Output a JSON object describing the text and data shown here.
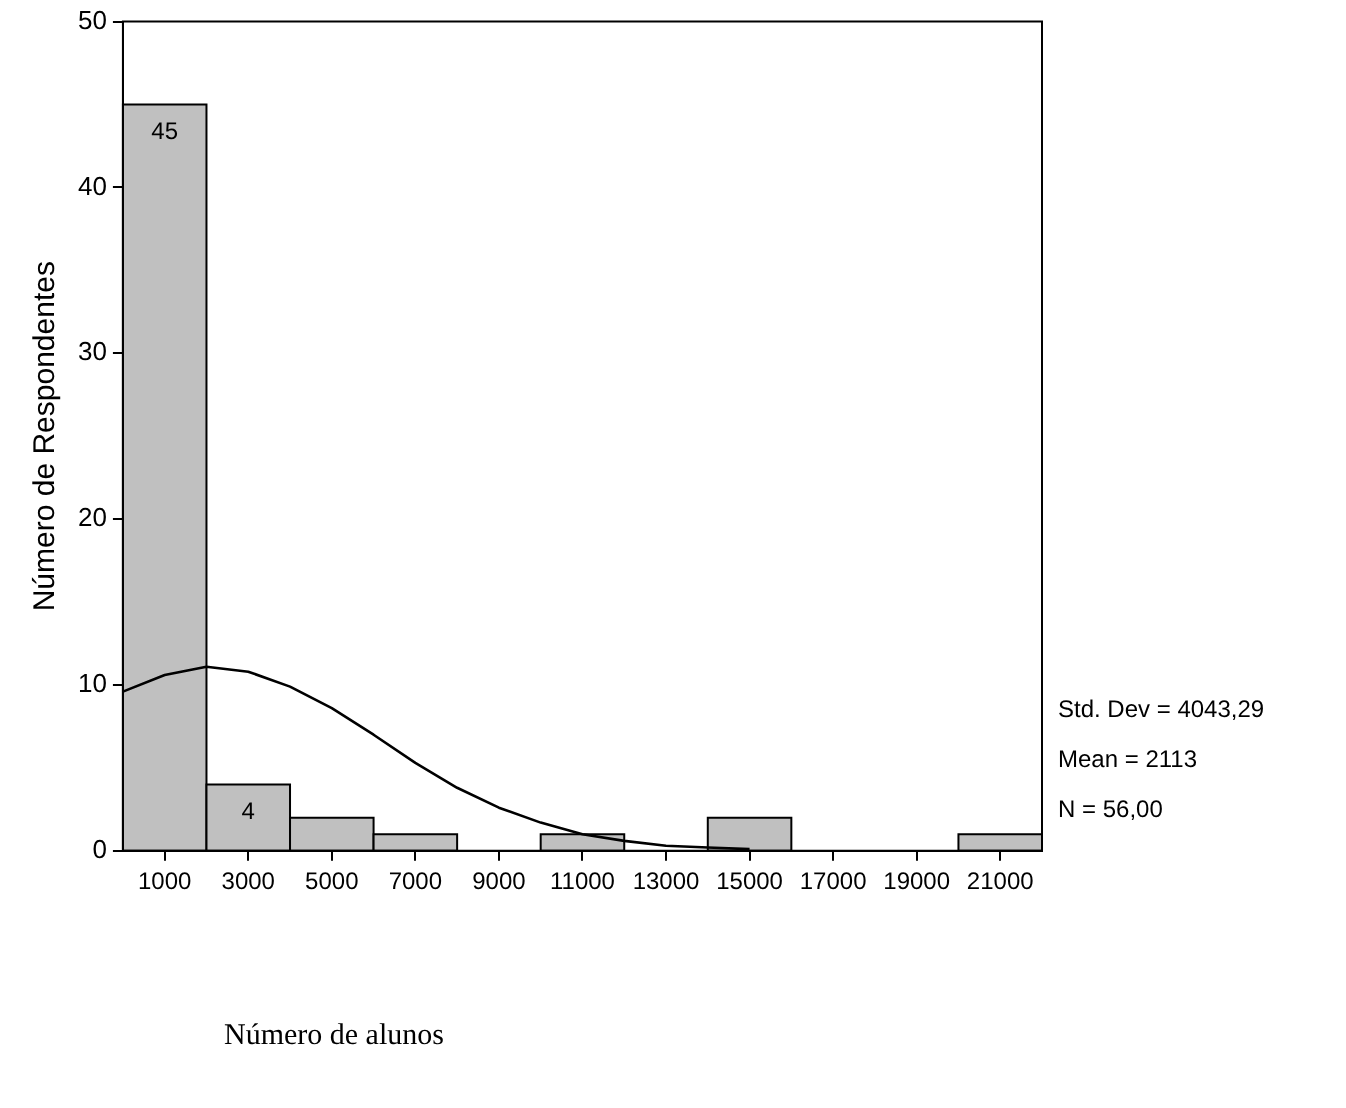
{
  "chart_data": {
    "type": "histogram",
    "xlabel": "Número de alunos",
    "ylabel": "Número de Respondentes",
    "bins": [
      0,
      2000,
      4000,
      6000,
      8000,
      10000,
      12000,
      14000,
      16000,
      18000,
      20000,
      22000
    ],
    "values": [
      45,
      4,
      2,
      1,
      0,
      1,
      0,
      2,
      0,
      0,
      1
    ],
    "value_labels": [
      "45",
      "4",
      null,
      null,
      null,
      null,
      null,
      null,
      null,
      null,
      null
    ],
    "color": "#c0c0c0",
    "series": [
      {
        "type": "line",
        "color": "#000000",
        "x": [
          0,
          1000,
          2000,
          3000,
          4000,
          5000,
          6000,
          7000,
          8000,
          9000,
          10000,
          11000,
          12000,
          13000,
          14000,
          15000
        ],
        "values": [
          9.6,
          10.6,
          11.1,
          10.8,
          9.9,
          8.6,
          7.0,
          5.3,
          3.8,
          2.6,
          1.7,
          1.0,
          0.6,
          0.3,
          0.2,
          0.1
        ]
      }
    ],
    "xlim": [
      0,
      22000
    ],
    "xticks": [
      1000,
      3000,
      5000,
      7000,
      9000,
      11000,
      13000,
      15000,
      17000,
      19000,
      21000
    ],
    "ylim": [
      0,
      50
    ],
    "yticks": [
      0,
      10,
      20,
      30,
      40,
      50
    ],
    "grid": false,
    "legend": false,
    "marker": "none",
    "annotations": [
      "Std. Dev = 4043,29",
      "Mean = 2113",
      "N = 56,00"
    ]
  }
}
